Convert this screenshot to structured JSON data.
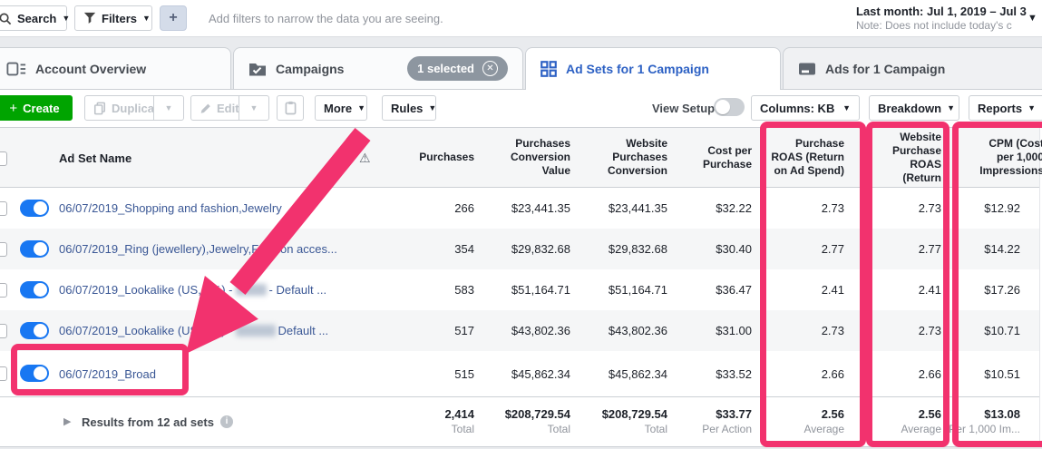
{
  "topbar": {
    "search_label": "Search",
    "filters_label": "Filters",
    "add_filter_button": "+",
    "filter_placeholder": "Add filters to narrow the data you are seeing.",
    "date_range": "Last month: Jul 1, 2019 – Jul 3",
    "date_note": "Note: Does not include today's c"
  },
  "tabs": {
    "account_overview": "Account Overview",
    "campaigns": "Campaigns",
    "campaigns_badge": "1 selected",
    "ad_sets": "Ad Sets for 1 Campaign",
    "ads": "Ads for 1 Campaign"
  },
  "toolbar": {
    "create": "Create",
    "duplicate": "Duplicate",
    "edit": "Edit",
    "more": "More",
    "rules": "Rules",
    "view_setup": "View Setup",
    "columns": "Columns: KB",
    "breakdown": "Breakdown",
    "reports": "Reports"
  },
  "table": {
    "name_header": "Ad Set Name",
    "header_cols": [
      "Purchases",
      "Purchases\nConversion\nValue",
      "Website\nPurchases\nConversion",
      "Cost per\nPurchase",
      "Purchase\nROAS (Return\non Ad Spend)",
      "Website\nPurchase\nROAS (Return",
      "CPM (Cost\nper 1,000\nImpressions"
    ],
    "rows": [
      {
        "name_parts": [
          {
            "t": "06/07/2019_Shopping and fashion,Jewelry"
          }
        ],
        "values": [
          "266",
          "$23,441.35",
          "$23,441.35",
          "$32.22",
          "2.73",
          "2.73",
          "$12.92"
        ]
      },
      {
        "name_parts": [
          {
            "t": "06/07/2019_Ring (jewellery),Jewelry,Fashion acces..."
          }
        ],
        "values": [
          "354",
          "$29,832.68",
          "$29,832.68",
          "$30.40",
          "2.77",
          "2.77",
          "$14.22"
        ]
      },
      {
        "name_parts": [
          {
            "t": "06/07/2019_Lookalike (US, 2%) - "
          },
          {
            "b": 34
          },
          {
            "t": " - Default ..."
          }
        ],
        "values": [
          "583",
          "$51,164.71",
          "$51,164.71",
          "$36.47",
          "2.41",
          "2.41",
          "$17.26"
        ]
      },
      {
        "name_parts": [
          {
            "t": "06/07/2019_Lookalike (US, 8%) - "
          },
          {
            "b": 44
          },
          {
            "t": " Default ..."
          }
        ],
        "values": [
          "517",
          "$43,802.36",
          "$43,802.36",
          "$31.00",
          "2.73",
          "2.73",
          "$10.71"
        ]
      },
      {
        "name_parts": [
          {
            "t": "06/07/2019_Broad"
          }
        ],
        "values": [
          "515",
          "$45,862.34",
          "$45,862.34",
          "$33.52",
          "2.66",
          "2.66",
          "$10.51"
        ]
      }
    ],
    "footer": {
      "label": "Results from 12 ad sets",
      "cells": [
        {
          "value": "2,414",
          "sub": "Total"
        },
        {
          "value": "$208,729.54",
          "sub": "Total"
        },
        {
          "value": "$208,729.54",
          "sub": "Total"
        },
        {
          "value": "$33.77",
          "sub": "Per Action"
        },
        {
          "value": "2.56",
          "sub": "Average"
        },
        {
          "value": "2.56",
          "sub": "Average"
        },
        {
          "value": "$13.08",
          "sub": "Per 1,000 Im..."
        }
      ]
    }
  },
  "annotation": {
    "highlight_color": "#f2326e"
  }
}
